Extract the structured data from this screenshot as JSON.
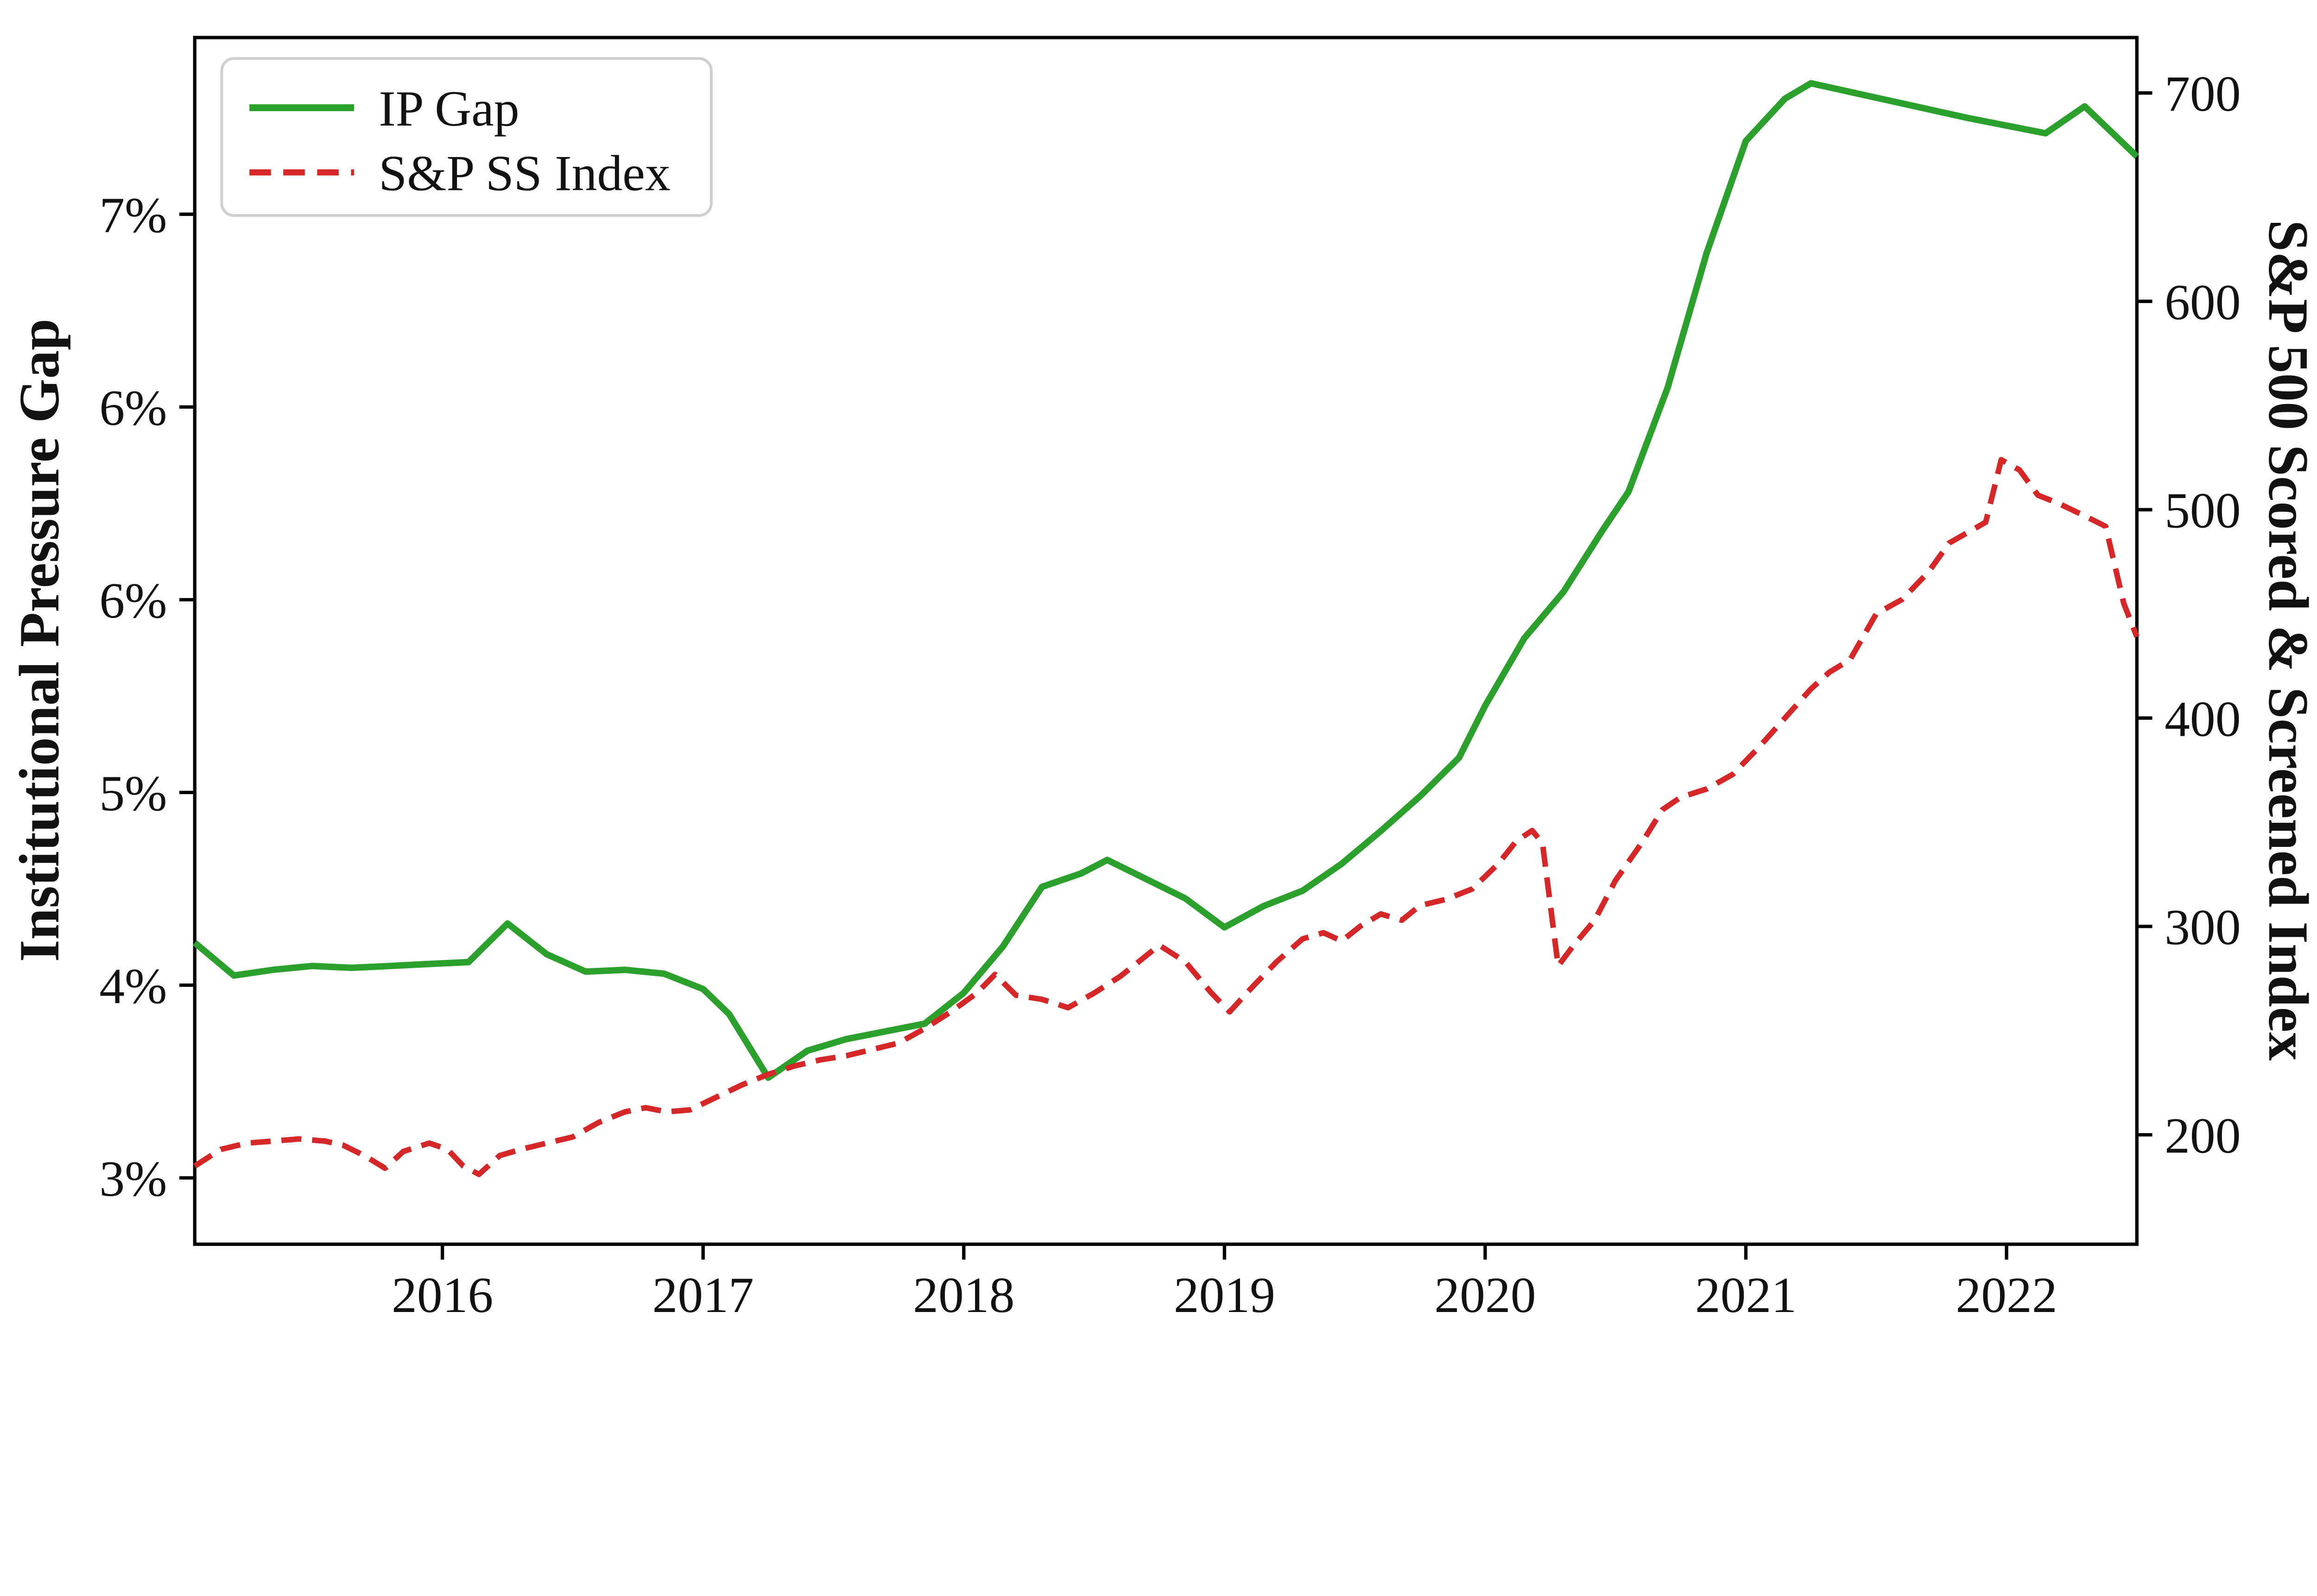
{
  "figure": {
    "background": "#ffffff"
  },
  "legend": {
    "position": "upper left",
    "items": [
      {
        "label": "IP Gap",
        "color": "#2ca02c",
        "style": "solid"
      },
      {
        "label": "S&P SS Index",
        "color": "#d62728",
        "style": "dashed"
      }
    ]
  },
  "chart_data": {
    "type": "line",
    "title": "",
    "grid": false,
    "legend_position": "upper left",
    "x_axis": {
      "label": "",
      "tick_values": [
        2016,
        2017,
        2018,
        2019,
        2020,
        2021,
        2022
      ],
      "tick_labels": [
        "2016",
        "2017",
        "2018",
        "2019",
        "2020",
        "2021",
        "2022"
      ],
      "range": [
        2015.05,
        2022.5
      ]
    },
    "left_axis": {
      "label": "Institutional Pressure Gap",
      "tick_labels": [
        "3%",
        "4%",
        "5%",
        "6%",
        "6%",
        "7%"
      ],
      "scale_values": [
        3,
        4,
        5,
        6,
        6.5,
        7
      ]
    },
    "right_axis": {
      "label": "S&P 500 Scored & Screened Index",
      "tick_labels": [
        "200",
        "300",
        "400",
        "500",
        "600",
        "700"
      ],
      "scale_values": [
        200,
        300,
        400,
        500,
        600,
        700
      ]
    },
    "series": [
      {
        "name": "IP Gap",
        "axis": "left",
        "color": "#2ca02c",
        "line_style": "solid",
        "points": [
          [
            2015.05,
            4.22
          ],
          [
            2015.2,
            4.05
          ],
          [
            2015.35,
            4.08
          ],
          [
            2015.5,
            4.1
          ],
          [
            2015.65,
            4.09
          ],
          [
            2015.8,
            4.1
          ],
          [
            2015.95,
            4.11
          ],
          [
            2016.1,
            4.12
          ],
          [
            2016.25,
            4.32
          ],
          [
            2016.4,
            4.16
          ],
          [
            2016.55,
            4.07
          ],
          [
            2016.7,
            4.08
          ],
          [
            2016.85,
            4.06
          ],
          [
            2017.0,
            3.98
          ],
          [
            2017.1,
            3.85
          ],
          [
            2017.25,
            3.52
          ],
          [
            2017.4,
            3.66
          ],
          [
            2017.55,
            3.72
          ],
          [
            2017.7,
            3.76
          ],
          [
            2017.85,
            3.8
          ],
          [
            2018.0,
            3.96
          ],
          [
            2018.15,
            4.2
          ],
          [
            2018.3,
            4.51
          ],
          [
            2018.45,
            4.58
          ],
          [
            2018.55,
            4.65
          ],
          [
            2018.7,
            4.55
          ],
          [
            2018.85,
            4.45
          ],
          [
            2019.0,
            4.3
          ],
          [
            2019.15,
            4.41
          ],
          [
            2019.3,
            4.49
          ],
          [
            2019.45,
            4.63
          ],
          [
            2019.6,
            4.8
          ],
          [
            2019.75,
            4.98
          ],
          [
            2019.9,
            5.18
          ],
          [
            2020.0,
            5.45
          ],
          [
            2020.15,
            5.8
          ],
          [
            2020.3,
            6.02
          ],
          [
            2020.45,
            6.18
          ],
          [
            2020.55,
            6.28
          ],
          [
            2020.7,
            6.55
          ],
          [
            2020.85,
            6.9
          ],
          [
            2021.0,
            7.19
          ],
          [
            2021.15,
            7.3
          ],
          [
            2021.25,
            7.34
          ],
          [
            2021.45,
            7.31
          ],
          [
            2021.65,
            7.28
          ],
          [
            2021.85,
            7.25
          ],
          [
            2022.0,
            7.23
          ],
          [
            2022.15,
            7.21
          ],
          [
            2022.3,
            7.28
          ],
          [
            2022.5,
            7.15
          ]
        ]
      },
      {
        "name": "S&P SS Index",
        "axis": "right",
        "color": "#d62728",
        "line_style": "dashed",
        "points": [
          [
            2015.05,
            185
          ],
          [
            2015.15,
            193
          ],
          [
            2015.25,
            196
          ],
          [
            2015.35,
            197
          ],
          [
            2015.45,
            198
          ],
          [
            2015.55,
            197
          ],
          [
            2015.62,
            195
          ],
          [
            2015.7,
            190
          ],
          [
            2015.78,
            184
          ],
          [
            2015.85,
            192
          ],
          [
            2015.95,
            196
          ],
          [
            2016.02,
            193
          ],
          [
            2016.08,
            185
          ],
          [
            2016.14,
            181
          ],
          [
            2016.22,
            190
          ],
          [
            2016.3,
            193
          ],
          [
            2016.4,
            196
          ],
          [
            2016.5,
            199
          ],
          [
            2016.6,
            206
          ],
          [
            2016.7,
            211
          ],
          [
            2016.78,
            213
          ],
          [
            2016.86,
            211
          ],
          [
            2016.95,
            212
          ],
          [
            2017.05,
            218
          ],
          [
            2017.15,
            224
          ],
          [
            2017.25,
            229
          ],
          [
            2017.35,
            233
          ],
          [
            2017.45,
            236
          ],
          [
            2017.55,
            238
          ],
          [
            2017.65,
            241
          ],
          [
            2017.75,
            244
          ],
          [
            2017.85,
            251
          ],
          [
            2017.95,
            259
          ],
          [
            2018.05,
            268
          ],
          [
            2018.12,
            277
          ],
          [
            2018.2,
            267
          ],
          [
            2018.3,
            265
          ],
          [
            2018.4,
            261
          ],
          [
            2018.5,
            268
          ],
          [
            2018.6,
            276
          ],
          [
            2018.68,
            284
          ],
          [
            2018.75,
            291
          ],
          [
            2018.85,
            283
          ],
          [
            2018.95,
            268
          ],
          [
            2019.02,
            259
          ],
          [
            2019.1,
            270
          ],
          [
            2019.2,
            283
          ],
          [
            2019.3,
            294
          ],
          [
            2019.38,
            297
          ],
          [
            2019.45,
            293
          ],
          [
            2019.52,
            300
          ],
          [
            2019.6,
            306
          ],
          [
            2019.68,
            303
          ],
          [
            2019.75,
            310
          ],
          [
            2019.85,
            313
          ],
          [
            2019.95,
            318
          ],
          [
            2020.05,
            330
          ],
          [
            2020.12,
            341
          ],
          [
            2020.18,
            346
          ],
          [
            2020.22,
            340
          ],
          [
            2020.28,
            281
          ],
          [
            2020.34,
            291
          ],
          [
            2020.42,
            303
          ],
          [
            2020.5,
            322
          ],
          [
            2020.6,
            340
          ],
          [
            2020.68,
            356
          ],
          [
            2020.75,
            362
          ],
          [
            2020.85,
            366
          ],
          [
            2020.95,
            373
          ],
          [
            2021.05,
            386
          ],
          [
            2021.15,
            400
          ],
          [
            2021.25,
            414
          ],
          [
            2021.32,
            422
          ],
          [
            2021.4,
            428
          ],
          [
            2021.5,
            450
          ],
          [
            2021.6,
            457
          ],
          [
            2021.7,
            470
          ],
          [
            2021.78,
            484
          ],
          [
            2021.85,
            489
          ],
          [
            2021.92,
            494
          ],
          [
            2021.98,
            524
          ],
          [
            2022.05,
            519
          ],
          [
            2022.12,
            507
          ],
          [
            2022.2,
            503
          ],
          [
            2022.3,
            497
          ],
          [
            2022.38,
            492
          ],
          [
            2022.45,
            455
          ],
          [
            2022.5,
            439
          ]
        ]
      }
    ]
  }
}
